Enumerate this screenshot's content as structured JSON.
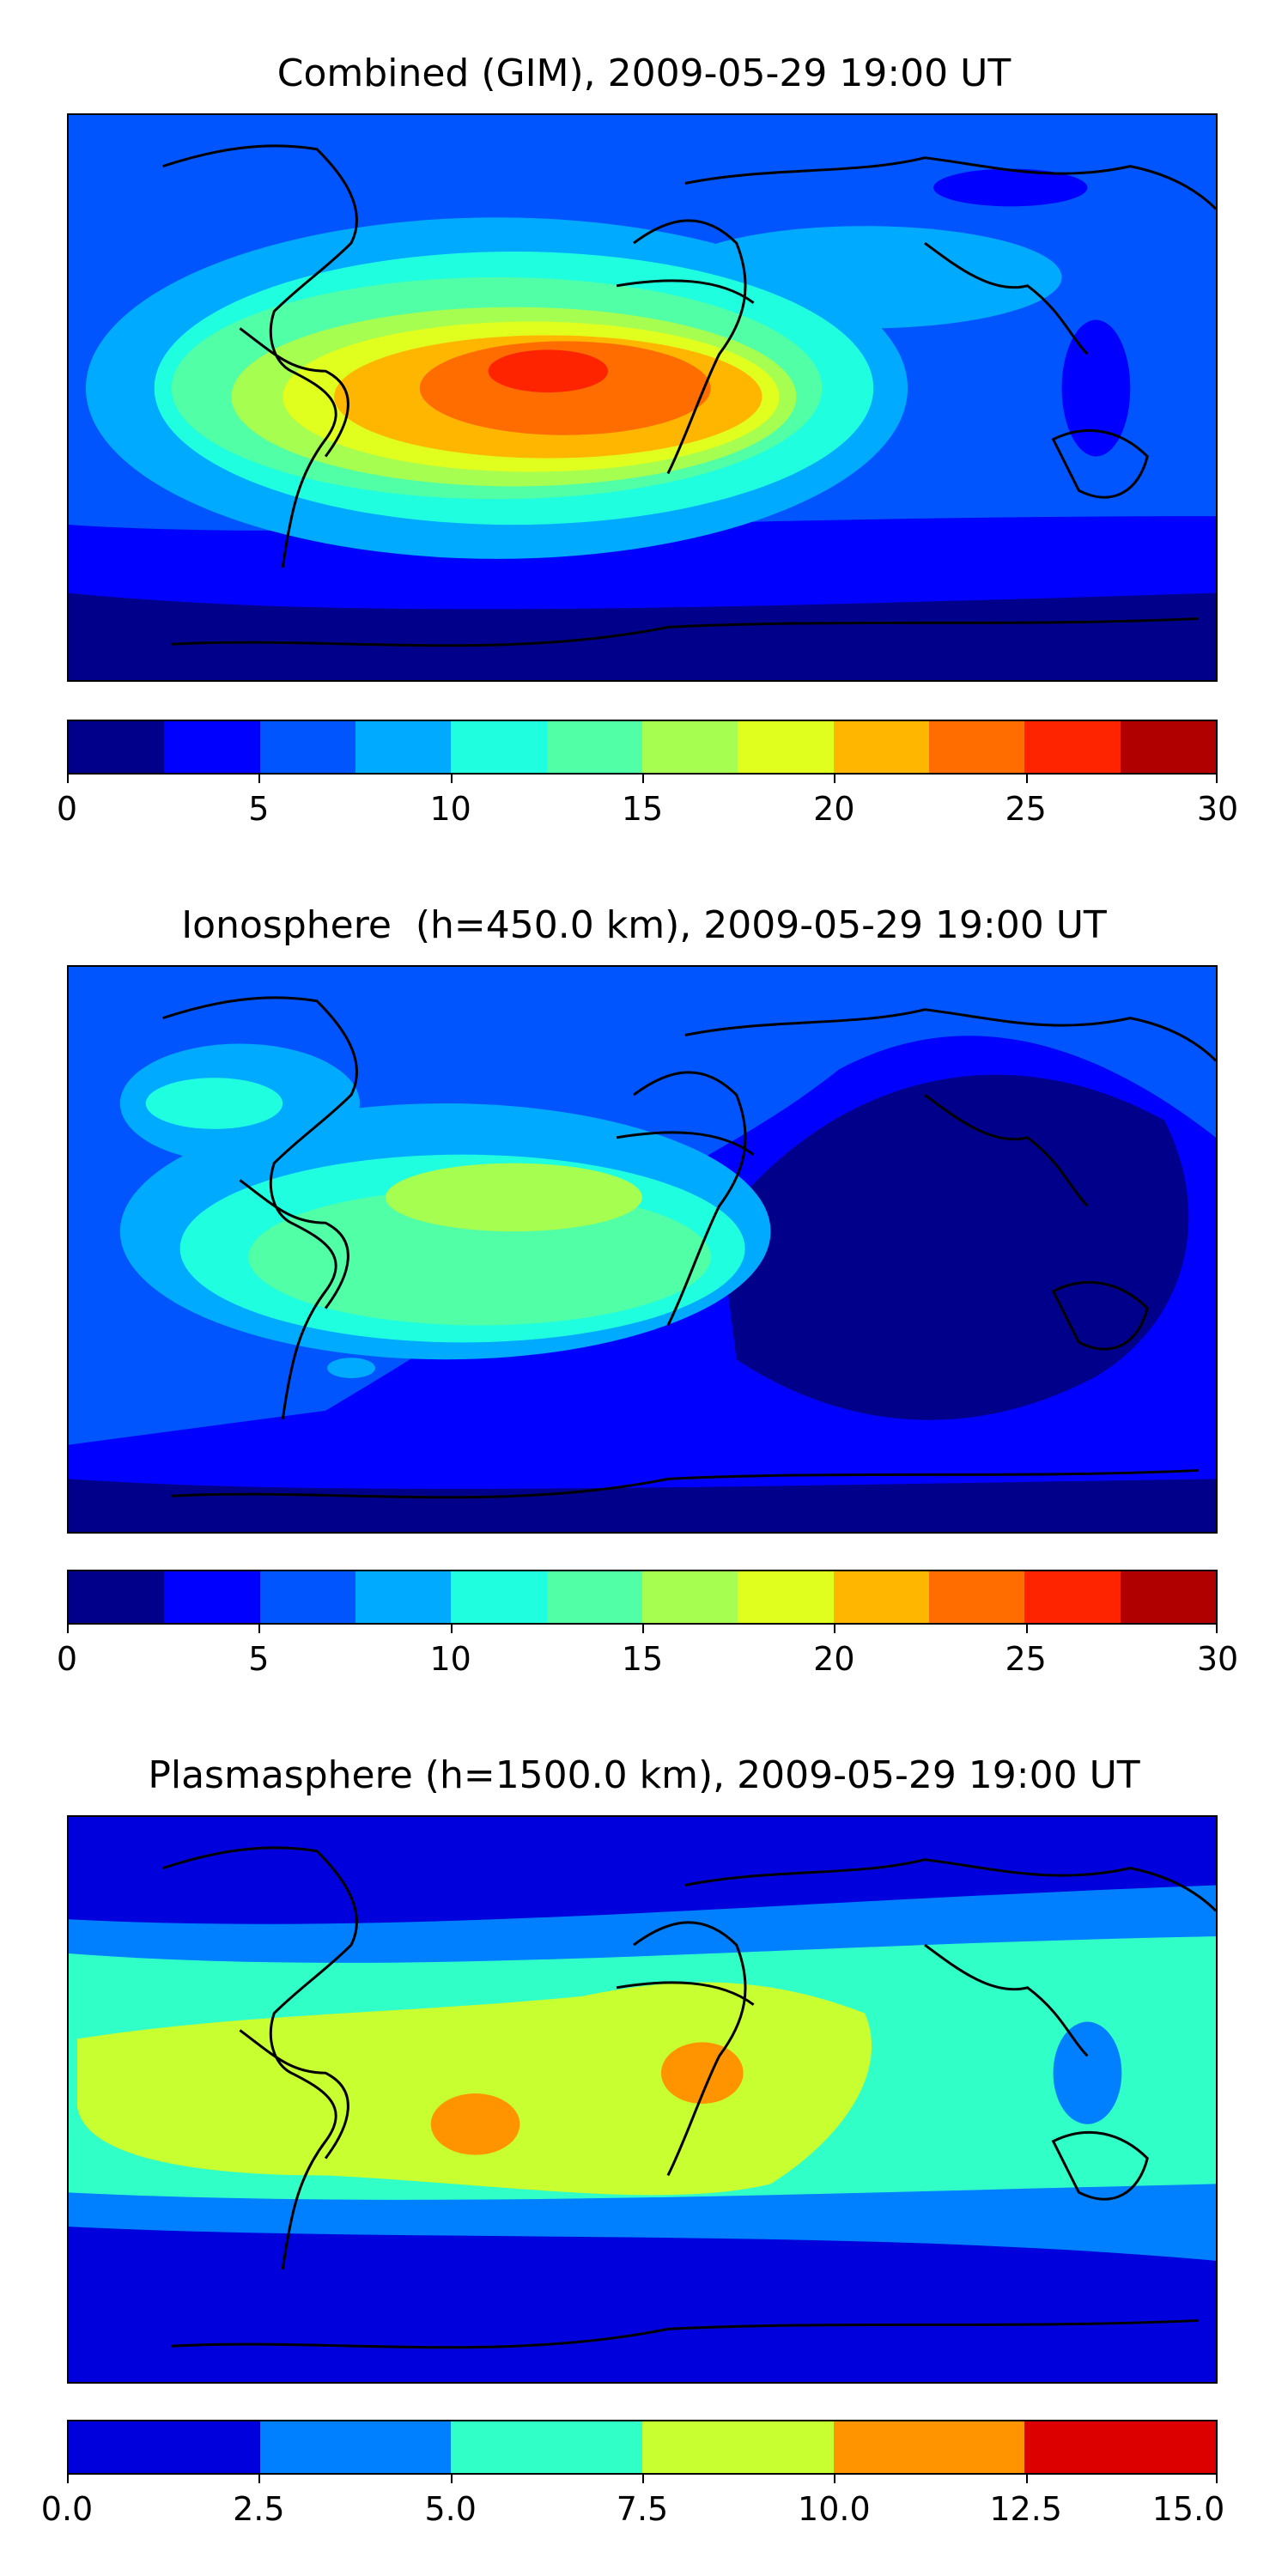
{
  "panels": [
    {
      "title": "Combined (GIM), 2009-05-29 19:00 UT",
      "colorbar": {
        "colors": [
          "#00008b",
          "#0000ff",
          "#0055ff",
          "#00aaff",
          "#1fffe0",
          "#50ffa6",
          "#a6ff50",
          "#e0ff1f",
          "#ffb600",
          "#ff6c00",
          "#ff2400",
          "#b00000"
        ],
        "tick_labels": [
          "0",
          "5",
          "10",
          "15",
          "20",
          "25",
          "30"
        ]
      }
    },
    {
      "title": "Ionosphere  (h=450.0 km), 2009-05-29 19:00 UT",
      "colorbar": {
        "colors": [
          "#00008b",
          "#0000ff",
          "#0055ff",
          "#00aaff",
          "#1fffe0",
          "#50ffa6",
          "#a6ff50",
          "#e0ff1f",
          "#ffb600",
          "#ff6c00",
          "#ff2400",
          "#b00000"
        ],
        "tick_labels": [
          "0",
          "5",
          "10",
          "15",
          "20",
          "25",
          "30"
        ]
      }
    },
    {
      "title": "Plasmasphere (h=1500.0 km), 2009-05-29 19:00 UT",
      "colorbar": {
        "colors": [
          "#0000dd",
          "#0080ff",
          "#30ffc8",
          "#c8ff30",
          "#ff9400",
          "#dd0000"
        ],
        "tick_labels": [
          "0.0",
          "2.5",
          "5.0",
          "7.5",
          "10.0",
          "12.5",
          "15.0"
        ]
      }
    }
  ]
}
